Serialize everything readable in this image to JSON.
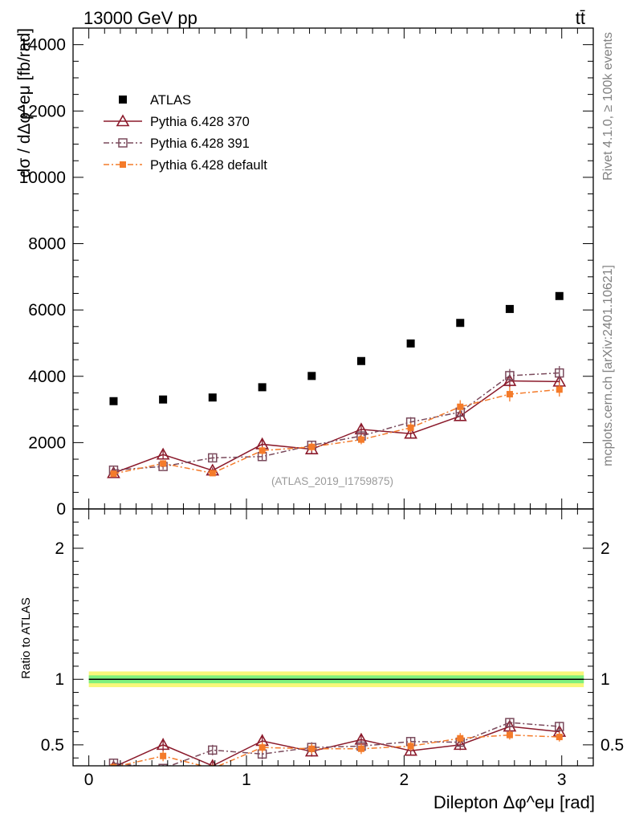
{
  "header": {
    "left": "13000 GeV pp",
    "right": "tt̄"
  },
  "side_text": {
    "rivet": "Rivet 4.1.0, ≥ 100k events",
    "mcplots": "mcplots.cern.ch [arXiv:2401.10621]"
  },
  "chart_data": [
    {
      "type": "scatter",
      "panel": "main",
      "title": "13000 GeV pp  tt̄",
      "ylabel": "dσ / dΔφ^eμ [fb/rad]",
      "xlabel": "Dilepton Δφ^eμ [rad]",
      "xlim": [
        -0.1,
        3.2
      ],
      "ylim": [
        0,
        14500
      ],
      "yticks": [
        0,
        2000,
        4000,
        6000,
        8000,
        10000,
        12000,
        14000
      ],
      "ytick_labels": [
        "0",
        "2000",
        "4000",
        "6000",
        "8000",
        "10000",
        "12000",
        "14000"
      ],
      "x": [
        0.157,
        0.471,
        0.785,
        1.1,
        1.414,
        1.728,
        2.042,
        2.356,
        2.67,
        2.985
      ],
      "analysis_label": "(ATLAS_2019_I1759875)",
      "legend_position": "top-left",
      "series": [
        {
          "name": "ATLAS",
          "style": "data",
          "color": "#000000",
          "values": [
            3250,
            3300,
            3360,
            3670,
            4010,
            4460,
            4990,
            5610,
            6030,
            6420
          ]
        },
        {
          "name": "Pythia 6.428 370",
          "style": "solid-triangle",
          "color": "#8b1a2b",
          "values": [
            1080,
            1640,
            1160,
            1950,
            1800,
            2400,
            2270,
            2800,
            3860,
            3840
          ],
          "errors": [
            80,
            120,
            90,
            140,
            120,
            170,
            140,
            150,
            190,
            220
          ]
        },
        {
          "name": "Pythia 6.428 391",
          "style": "dashdot-square",
          "color": "#7a4a5c",
          "values": [
            1170,
            1280,
            1540,
            1580,
            1920,
            2200,
            2620,
            2920,
            4020,
            4100
          ],
          "errors": [
            80,
            90,
            100,
            110,
            130,
            150,
            150,
            170,
            200,
            210
          ]
        },
        {
          "name": "Pythia 6.428 default",
          "style": "dashdot-filled-square",
          "color": "#f47b2a",
          "values": [
            1060,
            1370,
            1080,
            1760,
            1870,
            2090,
            2450,
            3080,
            3460,
            3600
          ],
          "errors": [
            80,
            100,
            90,
            120,
            120,
            140,
            150,
            200,
            220,
            210
          ]
        }
      ]
    },
    {
      "type": "scatter",
      "panel": "ratio",
      "ylabel": "Ratio to ATLAS",
      "xlabel": "Dilepton Δφ^eμ [rad]",
      "xlim": [
        -0.1,
        3.2
      ],
      "ylim": [
        0.34,
        2.3
      ],
      "yticks": [
        0.5,
        1,
        2
      ],
      "ytick_labels": [
        "0.5",
        "1",
        "2"
      ],
      "xticks": [
        0,
        1,
        2,
        3
      ],
      "xtick_labels": [
        "0",
        "1",
        "2",
        "3"
      ],
      "x": [
        0.157,
        0.471,
        0.785,
        1.1,
        1.414,
        1.728,
        2.042,
        2.356,
        2.67,
        2.985
      ],
      "reference_band": {
        "inner": 0.03,
        "outer": 0.06,
        "inner_color": "#7ef07e",
        "outer_color": "#f7f77a"
      },
      "series": [
        {
          "name": "Pythia 6.428 370",
          "color": "#8b1a2b",
          "values": [
            0.33,
            0.5,
            0.34,
            0.53,
            0.45,
            0.54,
            0.455,
            0.5,
            0.64,
            0.6
          ],
          "errors": [
            0.03,
            0.05,
            0.03,
            0.05,
            0.04,
            0.04,
            0.035,
            0.04,
            0.035,
            0.04
          ]
        },
        {
          "name": "Pythia 6.428 391",
          "color": "#7a4a5c",
          "values": [
            0.36,
            0.32,
            0.46,
            0.43,
            0.48,
            0.49,
            0.525,
            0.52,
            0.67,
            0.64
          ],
          "errors": [
            0.03,
            0.03,
            0.04,
            0.04,
            0.04,
            0.04,
            0.035,
            0.035,
            0.035,
            0.035
          ]
        },
        {
          "name": "Pythia 6.428 default",
          "color": "#f47b2a",
          "values": [
            0.33,
            0.415,
            0.32,
            0.48,
            0.47,
            0.47,
            0.49,
            0.55,
            0.575,
            0.56
          ],
          "errors": [
            0.03,
            0.04,
            0.03,
            0.04,
            0.04,
            0.04,
            0.035,
            0.04,
            0.035,
            0.035
          ]
        }
      ]
    }
  ]
}
